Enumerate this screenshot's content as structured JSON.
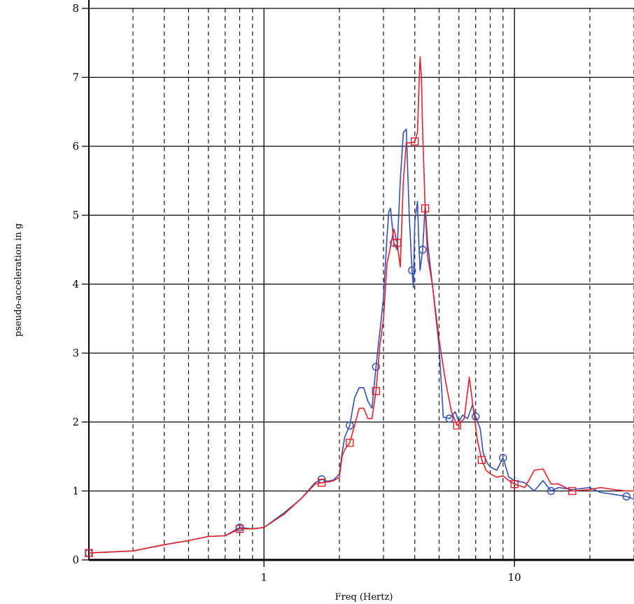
{
  "chart_data": {
    "type": "line",
    "xlabel": "Freq (Hertz)",
    "ylabel": "pseudo-acceleration in g",
    "xscale": "log",
    "xlim": [
      0.2,
      30
    ],
    "ylim": [
      0,
      8
    ],
    "xticks": [
      {
        "value": 1,
        "label": "1"
      },
      {
        "value": 10,
        "label": "10"
      }
    ],
    "yticks": [
      {
        "value": 0,
        "label": "0"
      },
      {
        "value": 1,
        "label": "1"
      },
      {
        "value": 2,
        "label": "2"
      },
      {
        "value": 3,
        "label": "3"
      },
      {
        "value": 4,
        "label": "4"
      },
      {
        "value": 5,
        "label": "5"
      },
      {
        "value": 6,
        "label": "6"
      },
      {
        "value": 7,
        "label": "7"
      },
      {
        "value": 8,
        "label": "8"
      }
    ],
    "grid": {
      "major_x": [
        1,
        10
      ],
      "minor_x": [
        0.3,
        0.4,
        0.5,
        0.6,
        0.7,
        0.8,
        0.9,
        2,
        3,
        4,
        5,
        6,
        7,
        8,
        9,
        20,
        30
      ],
      "major_y": [
        1,
        2,
        3,
        4,
        5,
        6,
        7,
        8
      ]
    },
    "series": [
      {
        "color": "#3050b8",
        "marker": "circle",
        "x": [
          0.2,
          0.3,
          0.4,
          0.5,
          0.6,
          0.7,
          0.8,
          0.9,
          1.0,
          1.2,
          1.4,
          1.6,
          1.7,
          1.8,
          1.9,
          2.0,
          2.05,
          2.1,
          2.2,
          2.3,
          2.4,
          2.5,
          2.6,
          2.7,
          2.8,
          2.9,
          3.0,
          3.1,
          3.15,
          3.2,
          3.3,
          3.4,
          3.5,
          3.6,
          3.7,
          3.8,
          3.9,
          3.95,
          4.0,
          4.1,
          4.15,
          4.2,
          4.3,
          4.4,
          4.5,
          4.7,
          5.0,
          5.2,
          5.5,
          5.8,
          6.0,
          6.2,
          6.5,
          6.8,
          7.0,
          7.3,
          7.5,
          7.8,
          8.0,
          8.5,
          9.0,
          9.5,
          10,
          11,
          12,
          13,
          14,
          15,
          17,
          20,
          22,
          25,
          28,
          30
        ],
        "y": [
          0.1,
          0.13,
          0.22,
          0.28,
          0.34,
          0.35,
          0.47,
          0.45,
          0.47,
          0.68,
          0.88,
          1.12,
          1.17,
          1.14,
          1.16,
          1.25,
          1.55,
          1.78,
          1.95,
          2.35,
          2.5,
          2.5,
          2.3,
          2.2,
          2.8,
          3.3,
          3.8,
          4.7,
          5.05,
          5.1,
          4.6,
          4.5,
          5.5,
          6.2,
          6.25,
          5.0,
          4.2,
          3.95,
          4.9,
          5.2,
          4.6,
          4.2,
          4.5,
          5.15,
          4.6,
          4.0,
          3.1,
          2.07,
          2.05,
          2.15,
          2.0,
          2.1,
          2.05,
          2.25,
          2.08,
          1.9,
          1.55,
          1.4,
          1.35,
          1.3,
          1.48,
          1.2,
          1.15,
          1.12,
          1.0,
          1.15,
          1.0,
          1.05,
          1.02,
          1.05,
          0.98,
          0.95,
          0.92,
          0.88
        ]
      },
      {
        "color": "#e8202a",
        "marker": "square",
        "x": [
          0.2,
          0.3,
          0.4,
          0.5,
          0.6,
          0.7,
          0.8,
          0.9,
          1.0,
          1.2,
          1.4,
          1.6,
          1.7,
          1.8,
          1.9,
          2.0,
          2.05,
          2.1,
          2.2,
          2.3,
          2.4,
          2.5,
          2.6,
          2.7,
          2.8,
          2.9,
          3.0,
          3.1,
          3.2,
          3.3,
          3.4,
          3.5,
          3.6,
          3.7,
          3.8,
          3.9,
          4.0,
          4.1,
          4.15,
          4.2,
          4.25,
          4.3,
          4.4,
          4.5,
          4.7,
          5.0,
          5.3,
          5.6,
          5.9,
          6.1,
          6.3,
          6.6,
          6.9,
          7.1,
          7.4,
          7.7,
          8.0,
          8.5,
          9.0,
          9.5,
          10,
          11,
          12,
          13,
          14,
          15,
          17,
          20,
          22,
          25,
          28,
          30
        ],
        "y": [
          0.1,
          0.13,
          0.22,
          0.28,
          0.34,
          0.35,
          0.45,
          0.45,
          0.47,
          0.66,
          0.88,
          1.1,
          1.12,
          1.13,
          1.15,
          1.2,
          1.5,
          1.6,
          1.7,
          1.95,
          2.2,
          2.2,
          2.05,
          2.05,
          2.45,
          3.1,
          3.5,
          4.3,
          4.55,
          4.8,
          4.6,
          4.25,
          5.5,
          6.05,
          6.05,
          6.05,
          6.07,
          6.2,
          6.8,
          7.3,
          7.0,
          6.2,
          5.1,
          4.4,
          4.0,
          3.2,
          2.6,
          2.15,
          1.95,
          2.0,
          2.05,
          2.65,
          2.1,
          1.75,
          1.45,
          1.3,
          1.25,
          1.2,
          1.22,
          1.15,
          1.1,
          1.05,
          1.3,
          1.32,
          1.1,
          1.1,
          1.0,
          1.02,
          1.05,
          1.02,
          1.0,
          1.0
        ]
      }
    ]
  }
}
